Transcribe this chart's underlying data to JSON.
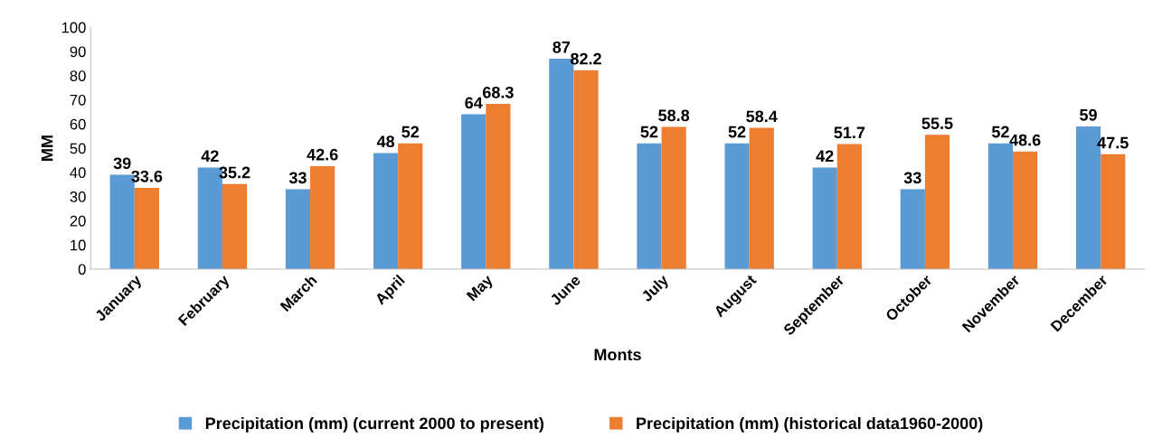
{
  "chart_data": {
    "type": "bar",
    "xlabel": "Monts",
    "ylabel": "MM",
    "categories": [
      "January",
      "February",
      "March",
      "April",
      "May",
      "June",
      "July",
      "August",
      "September",
      "October",
      "November",
      "December"
    ],
    "series": [
      {
        "name": "Precipitation (mm) (current 2000 to present)",
        "color": "#5b9bd5",
        "values": [
          39,
          42,
          33,
          48,
          64,
          87,
          52,
          52,
          42,
          33,
          52,
          59
        ]
      },
      {
        "name": "Precipitation (mm) (historical data1960-2000)",
        "color": "#ed7d31",
        "values": [
          33.6,
          35.2,
          42.6,
          52,
          68.3,
          82.2,
          58.8,
          58.4,
          51.7,
          55.5,
          48.6,
          47.5
        ]
      }
    ],
    "ylim": [
      0,
      100
    ],
    "yticks": [
      0,
      10,
      20,
      30,
      40,
      50,
      60,
      70,
      80,
      90,
      100
    ],
    "data_labels": true,
    "legend": "bottom",
    "grid": false
  }
}
